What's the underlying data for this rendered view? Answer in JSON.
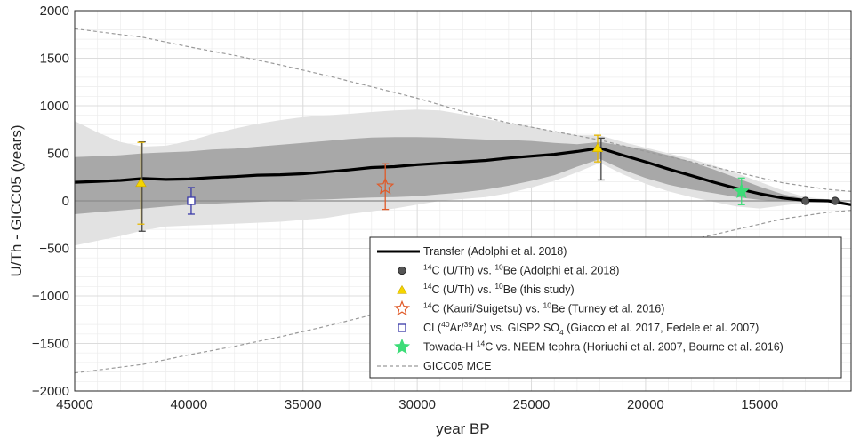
{
  "chart_data": {
    "type": "line",
    "xlabel": "year BP",
    "ylabel": "U/Th - GICC05 (years)",
    "xlim": [
      45000,
      11000
    ],
    "x_reversed": true,
    "ylim": [
      -2000,
      2000
    ],
    "grid": true,
    "minor_grid": true,
    "legend_position": "bottom-right",
    "x_ticks": [
      45000,
      40000,
      35000,
      30000,
      25000,
      20000,
      15000
    ],
    "x_tick_labels": [
      "45000",
      "40000",
      "35000",
      "30000",
      "25000",
      "20000",
      "15000"
    ],
    "y_ticks": [
      -2000,
      -1500,
      -1000,
      -500,
      0,
      500,
      1000,
      1500,
      2000
    ],
    "y_tick_labels": [
      "-2000",
      "-1500",
      "-1000",
      "-500",
      "0",
      "500",
      "1000",
      "1500",
      "2000"
    ],
    "colors": {
      "transfer": "#000000",
      "band_inner": "#a8a8a8",
      "band_outer": "#e2e2e2",
      "adolphi_points": "#555555",
      "this_study": "#f5d500",
      "turney": "#e05a28",
      "ci": "#3a3aa8",
      "towada": "#3ddc78",
      "mce": "#9a9a9a",
      "grid": "#dcdcdc"
    },
    "series": [
      {
        "key": "transfer",
        "x": [
          45000,
          44000,
          43000,
          42000,
          41000,
          40000,
          39000,
          38000,
          37000,
          36000,
          35000,
          34000,
          33000,
          32000,
          31000,
          30000,
          29000,
          28000,
          27000,
          26000,
          25000,
          24000,
          23000,
          22000,
          21000,
          20000,
          19000,
          18000,
          17000,
          16000,
          15000,
          14000,
          13000,
          12000,
          11000
        ],
        "y": [
          195,
          205,
          215,
          235,
          225,
          230,
          245,
          255,
          270,
          275,
          285,
          305,
          325,
          350,
          360,
          380,
          395,
          410,
          425,
          450,
          470,
          490,
          520,
          555,
          480,
          410,
          335,
          265,
          195,
          130,
          75,
          30,
          5,
          0,
          -40
        ],
        "inner_band_lower": [
          -140,
          -120,
          -100,
          -80,
          -60,
          -40,
          -30,
          -20,
          -10,
          0,
          10,
          15,
          25,
          35,
          40,
          50,
          70,
          90,
          120,
          160,
          210,
          270,
          360,
          440,
          330,
          240,
          170,
          120,
          80,
          40,
          10,
          -5,
          -5,
          -5,
          -45
        ],
        "inner_band_upper": [
          460,
          470,
          480,
          500,
          510,
          520,
          540,
          550,
          570,
          590,
          610,
          630,
          650,
          665,
          670,
          670,
          665,
          655,
          645,
          640,
          630,
          610,
          595,
          620,
          580,
          540,
          480,
          410,
          330,
          240,
          150,
          70,
          20,
          5,
          -35
        ],
        "outer_band_lower": [
          -470,
          -420,
          -370,
          -310,
          -270,
          -260,
          -250,
          -240,
          -230,
          -220,
          -200,
          -180,
          -140,
          -110,
          -80,
          -40,
          0,
          20,
          40,
          80,
          140,
          210,
          300,
          400,
          280,
          180,
          100,
          40,
          -10,
          -60,
          -80,
          -50,
          -20,
          -10,
          -50
        ],
        "outer_band_upper": [
          840,
          720,
          620,
          570,
          580,
          630,
          700,
          760,
          810,
          850,
          880,
          900,
          915,
          935,
          950,
          960,
          950,
          910,
          860,
          820,
          780,
          730,
          690,
          690,
          620,
          560,
          500,
          440,
          370,
          290,
          200,
          110,
          40,
          15,
          -25
        ]
      },
      {
        "key": "mce",
        "x": [
          45000,
          42000,
          40000,
          38000,
          36000,
          34000,
          32000,
          30000,
          28000,
          26000,
          24000,
          22000,
          20000,
          18000,
          16000,
          14000,
          12000,
          11000
        ],
        "upper": [
          1810,
          1720,
          1620,
          1530,
          1430,
          1320,
          1200,
          1080,
          940,
          820,
          730,
          640,
          520,
          410,
          300,
          190,
          120,
          100
        ],
        "lower": [
          -1810,
          -1720,
          -1620,
          -1530,
          -1430,
          -1320,
          -1200,
          -1080,
          -940,
          -820,
          -730,
          -640,
          -520,
          -410,
          -300,
          -190,
          -120,
          -100
        ]
      }
    ],
    "points": {
      "adolphi": [
        {
          "x": 13000,
          "y": 0
        },
        {
          "x": 11700,
          "y": 0
        }
      ],
      "this_study": [
        {
          "x": 42100,
          "y": 185,
          "err": 430
        },
        {
          "x": 22100,
          "y": 550,
          "err": 140
        }
      ],
      "adolphi_errorbars": [
        {
          "x": 42050,
          "y": 150,
          "err": 470
        },
        {
          "x": 21950,
          "y": 440,
          "err": 220
        }
      ],
      "turney": [
        {
          "x": 31400,
          "y": 150,
          "err": 240
        }
      ],
      "ci": [
        {
          "x": 39900,
          "y": 0,
          "err": 140
        }
      ],
      "towada": [
        {
          "x": 15800,
          "y": 100,
          "err": 140
        }
      ]
    },
    "legend": [
      {
        "key": "transfer",
        "marker": "line",
        "pre": "Transfer (Adolphi et al. 2018)",
        "sup": "",
        "mid": "",
        "sup2": "",
        "sub": "",
        "post": ""
      },
      {
        "key": "adolphi",
        "marker": "circle",
        "pre": "",
        "sup": "14",
        "mid": "C (U/Th) vs. ",
        "sup2": "10",
        "sub": "",
        "post": "Be (Adolphi et al. 2018)"
      },
      {
        "key": "this_study",
        "marker": "triangle",
        "pre": "",
        "sup": "14",
        "mid": "C (U/Th) vs. ",
        "sup2": "10",
        "sub": "",
        "post": "Be (this study)"
      },
      {
        "key": "turney",
        "marker": "star",
        "pre": "",
        "sup": "14",
        "mid": "C (Kauri/Suigetsu) vs. ",
        "sup2": "10",
        "sub": "",
        "post": "Be (Turney et al. 2016)"
      },
      {
        "key": "ci",
        "marker": "square",
        "pre": "CI (",
        "sup": "40",
        "mid": "Ar/",
        "sup2": "39",
        "sub": "4",
        "post": ""
      },
      {
        "key": "towada",
        "marker": "star",
        "pre": "Towada-H ",
        "sup": "14",
        "mid": "C vs. NEEM tephra (Horiuchi et al. 2007, Bourne et al. 2016)",
        "sup2": "",
        "sub": "",
        "post": ""
      },
      {
        "key": "mce",
        "marker": "dash",
        "pre": "GICC05 MCE",
        "sup": "",
        "mid": "",
        "sup2": "",
        "sub": "",
        "post": ""
      }
    ],
    "legend_ci_text": {
      "a": "CI (",
      "b": "Ar/",
      "c": "Ar) vs. GISP2 SO",
      "d": " (Giacco et al. 2017, Fedele et al. 2007)"
    }
  }
}
